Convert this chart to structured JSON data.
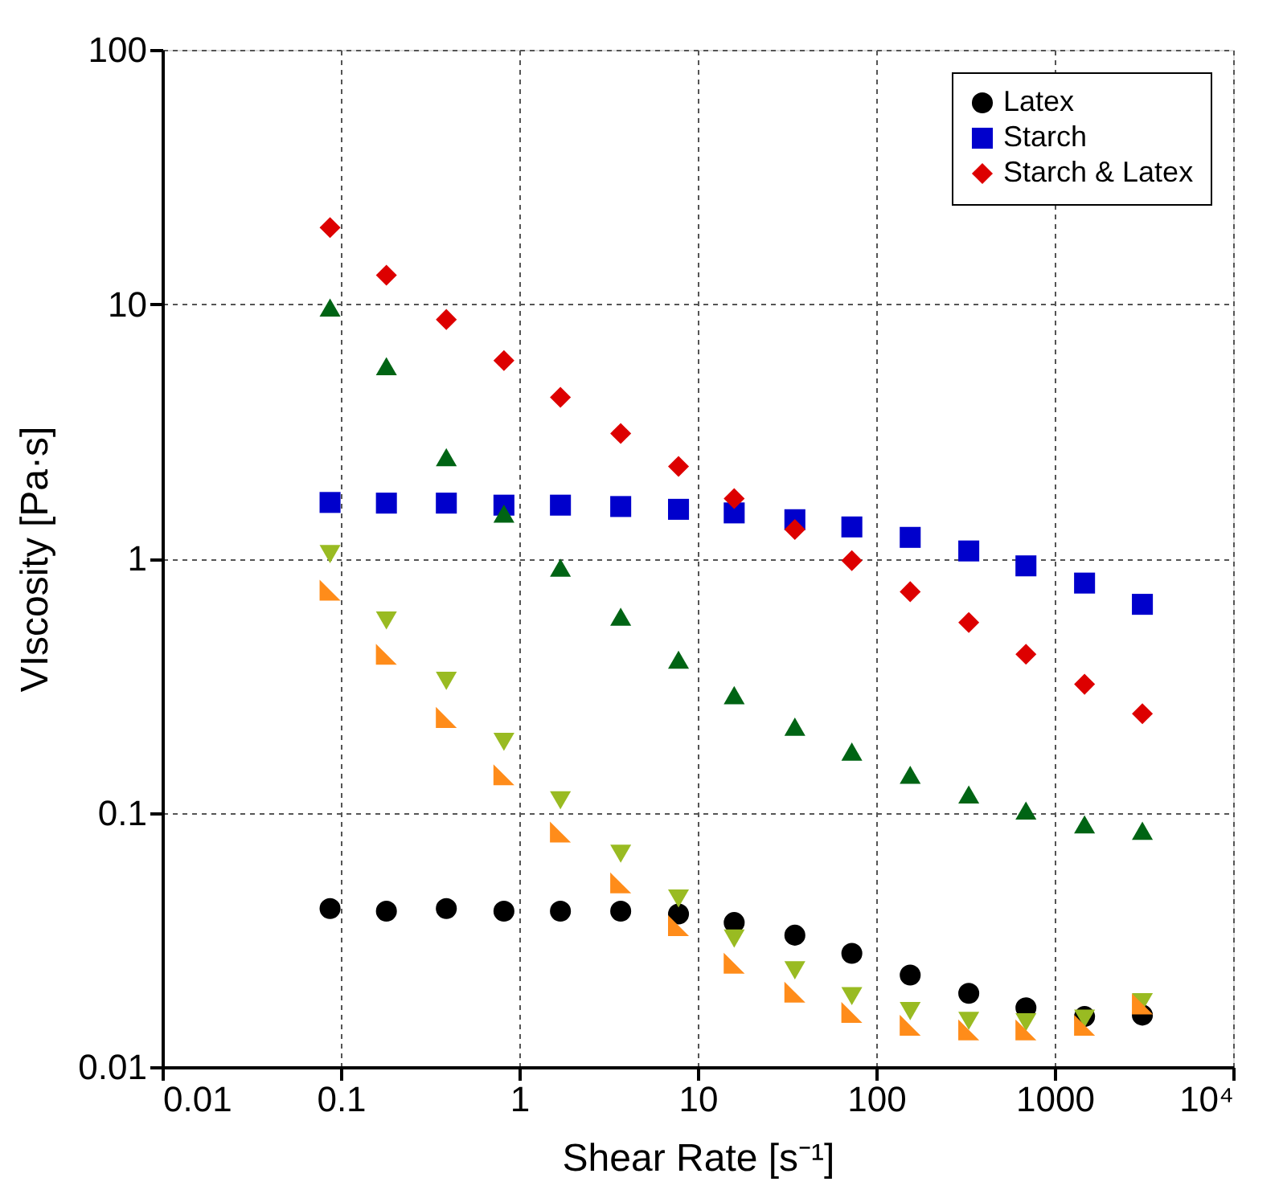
{
  "chart_data": {
    "type": "scatter",
    "xlabel": "Shear Rate [s⁻¹]",
    "ylabel": "VIscosity [Pa·s]",
    "x": [
      0.087,
      0.18,
      0.39,
      0.82,
      1.7,
      3.7,
      7.8,
      16,
      35,
      73,
      155,
      330,
      690,
      1470,
      3100
    ],
    "log": "xy",
    "xlim": [
      0.01,
      10000
    ],
    "ylim": [
      0.01,
      100
    ],
    "xticks": [
      0.01,
      0.1,
      1,
      10,
      100,
      1000,
      {
        "value": 10000,
        "label": "10⁴"
      }
    ],
    "yticks": [
      0.01,
      0.1,
      1,
      10,
      100
    ],
    "grid": true,
    "legend": "top right",
    "series": [
      {
        "name": "Latex",
        "color": "#000000",
        "marker": "circle",
        "values": [
          0.042,
          0.041,
          0.042,
          0.041,
          0.041,
          0.041,
          0.04,
          0.037,
          0.033,
          0.028,
          0.023,
          0.0195,
          0.0171,
          0.0158,
          0.016
        ]
      },
      {
        "name": "Starch",
        "color": "#0000cc",
        "marker": "square",
        "values": [
          1.66,
          1.65,
          1.65,
          1.62,
          1.62,
          1.6,
          1.56,
          1.51,
          1.42,
          1.33,
          1.21,
          1.07,
          0.935,
          0.8,
          0.66
        ]
      },
      {
        "name": "Starch & Latex",
        "color": "#dd0000",
        "marker": "diamond",
        "values": [
          20,
          13,
          8.7,
          6.0,
          4.3,
          3.1,
          2.3,
          1.72,
          1.3,
          0.98,
          0.74,
          0.56,
          0.42,
          0.32,
          0.245
        ]
      },
      {
        "color": "#006414",
        "marker": "triangle",
        "values": [
          9.7,
          5.7,
          2.5,
          1.5,
          0.92,
          0.59,
          0.4,
          0.29,
          0.218,
          0.174,
          0.141,
          0.118,
          0.102,
          0.09,
          0.085
        ]
      },
      {
        "color": "#99bb22",
        "marker": "triangle-down",
        "values": [
          1.04,
          0.57,
          0.33,
          0.19,
          0.112,
          0.069,
          0.046,
          0.032,
          0.024,
          0.019,
          0.0166,
          0.0152,
          0.015,
          0.0155,
          0.018
        ]
      },
      {
        "color": "#ff8c1a",
        "values": [
          0.75,
          0.42,
          0.237,
          0.141,
          0.084,
          0.053,
          0.036,
          0.0256,
          0.0197,
          0.0164,
          0.0146,
          0.014,
          0.014,
          0.0146,
          0.0177
        ]
      }
    ]
  }
}
